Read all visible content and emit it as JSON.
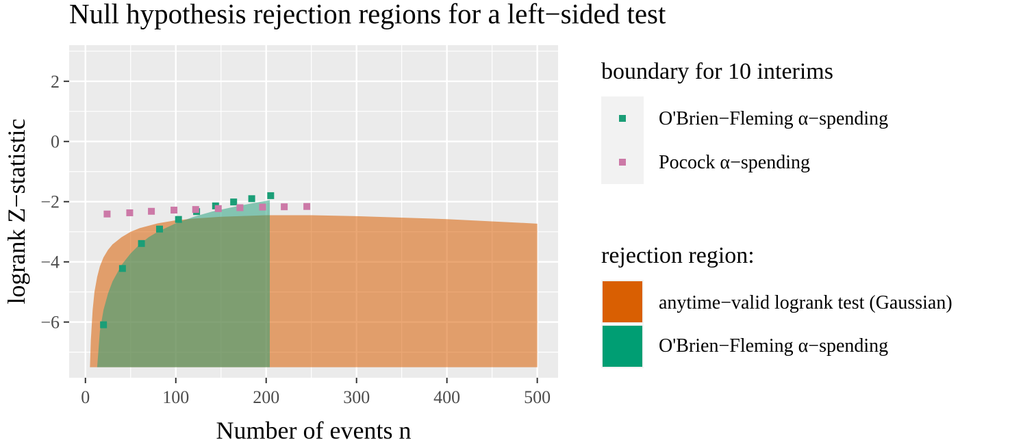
{
  "chart_data": {
    "type": "area",
    "title": "Null hypothesis rejection regions for a left−sided test",
    "xlabel": "Number of events n",
    "ylabel": "logrank Z−statistic",
    "xlim": [
      -18,
      523
    ],
    "ylim": [
      -7.85,
      3.2
    ],
    "xticks": [
      0,
      100,
      200,
      300,
      400,
      500
    ],
    "xtick_labels": [
      "0",
      "100",
      "200",
      "300",
      "400",
      "500"
    ],
    "yticks": [
      2,
      0,
      -2,
      -4,
      -6
    ],
    "ytick_labels": [
      "2",
      "0",
      "−2",
      "−4",
      "−6"
    ],
    "grid": true,
    "legend_position": "right",
    "areas": [
      {
        "name": "anytime−valid logrank test (Gaussian)",
        "color": "#D95F02",
        "opacity": 0.55,
        "y_floor": -7.5,
        "x": [
          5,
          6,
          8,
          10,
          13,
          16,
          20,
          25,
          30,
          40,
          50,
          60,
          80,
          100,
          120,
          150,
          200,
          250,
          300,
          400,
          500
        ],
        "y": [
          -7.5,
          -6.6,
          -5.6,
          -5.0,
          -4.5,
          -4.15,
          -3.85,
          -3.6,
          -3.42,
          -3.18,
          -3.0,
          -2.88,
          -2.72,
          -2.62,
          -2.56,
          -2.5,
          -2.45,
          -2.45,
          -2.48,
          -2.58,
          -2.73
        ]
      },
      {
        "name": "O'Brien−Fleming α−spending",
        "color": "#1B9E77",
        "opacity": 0.5,
        "y_floor": -7.5,
        "x": [
          13,
          16,
          20,
          25,
          30,
          40,
          50,
          60,
          70,
          80,
          100,
          120,
          140,
          160,
          180,
          204,
          204
        ],
        "y": [
          -7.5,
          -6.3,
          -5.6,
          -5.05,
          -4.65,
          -4.1,
          -3.72,
          -3.42,
          -3.18,
          -3.0,
          -2.72,
          -2.5,
          -2.33,
          -2.2,
          -2.08,
          -1.95,
          -7.5
        ]
      }
    ],
    "series": [
      {
        "name": "O'Brien−Fleming α−spending",
        "color": "#1B9E77",
        "x": [
          20,
          41,
          62,
          82,
          103,
          123,
          144,
          164,
          184,
          205
        ],
        "y": [
          -6.09,
          -4.22,
          -3.39,
          -2.91,
          -2.59,
          -2.33,
          -2.14,
          -2.01,
          -1.9,
          -1.8
        ]
      },
      {
        "name": "Pocock α−spending",
        "color": "#CC79A7",
        "x": [
          24,
          49,
          73,
          98,
          122,
          147,
          171,
          196,
          220,
          245
        ],
        "y": [
          -2.41,
          -2.37,
          -2.32,
          -2.28,
          -2.26,
          -2.23,
          -2.2,
          -2.18,
          -2.17,
          -2.16
        ]
      }
    ],
    "legend_points": {
      "title": "boundary for 10 interims",
      "entries": [
        {
          "label": "O'Brien−Fleming α−spending",
          "color": "#1B9E77"
        },
        {
          "label": "Pocock α−spending",
          "color": "#CC79A7"
        }
      ]
    },
    "legend_fill": {
      "title": "rejection region:",
      "entries": [
        {
          "label": "anytime−valid logrank test (Gaussian)",
          "color": "#D95F02"
        },
        {
          "label": "O'Brien−Fleming α−spending",
          "color": "#009E73"
        }
      ]
    },
    "colors": {
      "panel_background": "#EBEBEB",
      "grid_major": "#FFFFFF",
      "legend_key_background": "#F2F2F2"
    }
  }
}
